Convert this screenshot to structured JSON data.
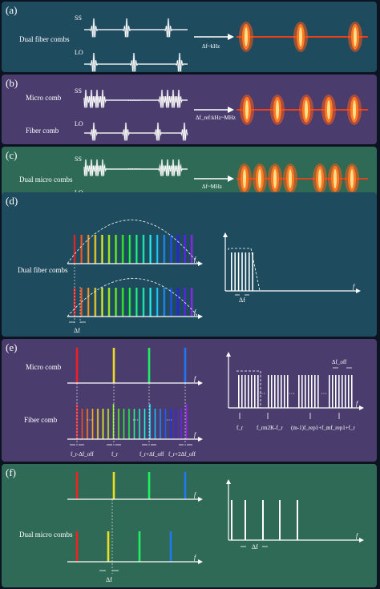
{
  "colors": {
    "panel_a": "#1f4b5f",
    "panel_b": "#4a3d6e",
    "panel_c": "#2f6a56",
    "panel_d": "#1f4b5f",
    "panel_e": "#4a3d6e",
    "panel_f": "#2f6a56",
    "pulse": "#ffffff",
    "burst_core": "#ffe08a",
    "burst_outer": "#ff5a14",
    "burst_line": "#e8401a"
  },
  "panel_a": {
    "tag": "(a)",
    "label": "Dual fiber combs",
    "ss": "SS",
    "lo": "LO",
    "arrow_label": "Δf~kHz"
  },
  "panel_b": {
    "tag": "(b)",
    "label_top": "Micro comb",
    "label_bottom": "Fiber comb",
    "ss": "SS",
    "lo": "LO",
    "ellipsis": "……",
    "arrow_label": "Δf_ref:kHz~MHz"
  },
  "panel_c": {
    "tag": "(c)",
    "label": "Dual micro combs",
    "ss": "SS",
    "lo": "LO",
    "ellipsis": "……",
    "arrow_label": "Δf~MHz"
  },
  "panel_d": {
    "tag": "(d)",
    "label": "Dual fiber combs",
    "axis_f": "f",
    "delta_f": "Δf",
    "rf_delta_f": "Δf"
  },
  "panel_e": {
    "tag": "(e)",
    "label_top": "Micro comb",
    "label_bottom": "Fiber comb",
    "axis_f": "f",
    "dots": "···",
    "offsets": [
      "f_r-Δf_off",
      "f_r",
      "f_r+Δf_off",
      "f_r+2Δf_off"
    ],
    "rf_ticks": [
      "f_r",
      "f_rm2K-f_r",
      "(m-1)f_rep1+f_r",
      "mf_rep1+f_r"
    ],
    "rf_delta": "Δf_off"
  },
  "panel_f": {
    "tag": "(f)",
    "label": "Dual micro combs",
    "axis_f": "f",
    "delta_f": "Δf",
    "rf_delta_f": "Δf"
  }
}
